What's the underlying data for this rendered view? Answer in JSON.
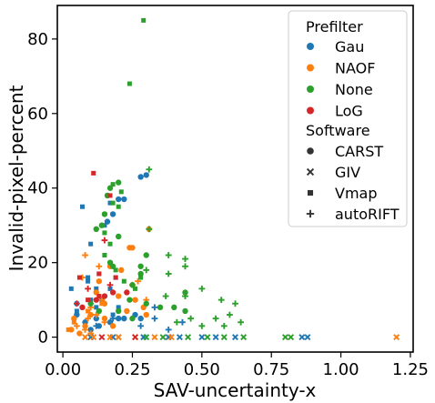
{
  "chart_data": {
    "type": "scatter",
    "title": "",
    "xlabel": "SAV-uncertainty-x",
    "ylabel": "Invalid-pixel-percent",
    "xlim": [
      -0.02,
      1.26
    ],
    "ylim": [
      -4,
      89
    ],
    "x_ticks": [
      "0.00",
      "0.25",
      "0.50",
      "0.75",
      "1.00",
      "1.25"
    ],
    "x_tick_values": [
      0,
      0.25,
      0.5,
      0.75,
      1.0,
      1.25
    ],
    "y_ticks": [
      "0",
      "20",
      "40",
      "60",
      "80"
    ],
    "y_tick_values": [
      0,
      20,
      40,
      60,
      80
    ],
    "grid": false,
    "legend": {
      "placement": "top-right",
      "hue_title": "Prefilter",
      "style_title": "Software",
      "hue_entries": [
        {
          "name": "Gau",
          "color": "#1f77b4"
        },
        {
          "name": "NAOF",
          "color": "#ff7f0e"
        },
        {
          "name": "None",
          "color": "#2ca02c"
        },
        {
          "name": "LoG",
          "color": "#d62728"
        }
      ],
      "style_entries": [
        {
          "name": "CARST",
          "marker": "circle"
        },
        {
          "name": "GIV",
          "marker": "x"
        },
        {
          "name": "Vmap",
          "marker": "square"
        },
        {
          "name": "autoRIFT",
          "marker": "plus"
        }
      ]
    },
    "series": [
      {
        "prefilter": "Gau",
        "software": "CARST",
        "points": [
          [
            0.28,
            43
          ],
          [
            0.3,
            43.5
          ],
          [
            0.22,
            37
          ],
          [
            0.2,
            37
          ],
          [
            0.16,
            31
          ],
          [
            0.18,
            33
          ],
          [
            0.05,
            6
          ],
          [
            0.08,
            4
          ],
          [
            0.12,
            5
          ],
          [
            0.17,
            4
          ],
          [
            0.2,
            5
          ],
          [
            0.22,
            5
          ],
          [
            0.13,
            3
          ],
          [
            0.1,
            2
          ],
          [
            0.26,
            6
          ],
          [
            0.28,
            5
          ]
        ]
      },
      {
        "prefilter": "Gau",
        "software": "GIV",
        "points": [
          [
            0.1,
            0
          ],
          [
            0.18,
            0
          ],
          [
            0.2,
            0
          ],
          [
            0.29,
            0
          ],
          [
            0.38,
            0
          ],
          [
            0.42,
            0
          ],
          [
            0.5,
            0
          ],
          [
            0.55,
            0
          ],
          [
            0.62,
            0
          ],
          [
            0.86,
            0
          ],
          [
            0.88,
            0
          ]
        ]
      },
      {
        "prefilter": "Gau",
        "software": "Vmap",
        "points": [
          [
            0.15,
            30
          ],
          [
            0.07,
            35
          ],
          [
            0.17,
            36
          ],
          [
            0.1,
            25
          ],
          [
            0.09,
            16
          ],
          [
            0.13,
            17
          ],
          [
            0.19,
            16
          ],
          [
            0.03,
            13
          ],
          [
            0.09,
            15
          ],
          [
            0.12,
            13
          ],
          [
            0.17,
            13
          ],
          [
            0.05,
            9
          ],
          [
            0.1,
            10
          ],
          [
            0.14,
            10
          ],
          [
            0.2,
            8
          ],
          [
            0.05,
            7
          ],
          [
            0.12,
            8
          ],
          [
            0.18,
            6
          ]
        ]
      },
      {
        "prefilter": "Gau",
        "software": "autoRIFT",
        "points": [
          [
            0.12,
            3
          ],
          [
            0.18,
            5
          ],
          [
            0.33,
            5
          ],
          [
            0.38,
            2
          ],
          [
            0.43,
            4
          ],
          [
            0.33,
            8
          ],
          [
            0.28,
            3
          ]
        ]
      },
      {
        "prefilter": "NAOF",
        "software": "CARST",
        "points": [
          [
            0.31,
            29
          ],
          [
            0.25,
            24
          ],
          [
            0.24,
            24
          ],
          [
            0.17,
            19
          ],
          [
            0.21,
            18
          ],
          [
            0.13,
            15
          ],
          [
            0.12,
            12
          ],
          [
            0.15,
            9
          ],
          [
            0.2,
            11
          ],
          [
            0.26,
            10
          ],
          [
            0.04,
            5
          ],
          [
            0.08,
            3
          ],
          [
            0.03,
            2
          ],
          [
            0.06,
            1
          ],
          [
            0.1,
            6
          ],
          [
            0.15,
            5
          ],
          [
            0.18,
            3
          ],
          [
            0.23,
            7
          ],
          [
            0.29,
            8
          ],
          [
            0.3,
            6
          ]
        ]
      },
      {
        "prefilter": "NAOF",
        "software": "GIV",
        "points": [
          [
            0.08,
            0
          ],
          [
            0.11,
            0
          ],
          [
            0.17,
            0
          ],
          [
            0.2,
            0
          ],
          [
            0.26,
            0
          ],
          [
            0.33,
            0
          ],
          [
            0.39,
            0
          ],
          [
            1.2,
            0
          ]
        ]
      },
      {
        "prefilter": "NAOF",
        "software": "Vmap",
        "points": [
          [
            0.14,
            9
          ],
          [
            0.09,
            7
          ],
          [
            0.04,
            4
          ],
          [
            0.02,
            2
          ]
        ]
      },
      {
        "prefilter": "NAOF",
        "software": "autoRIFT",
        "points": [
          [
            0.08,
            22
          ],
          [
            0.13,
            19
          ],
          [
            0.07,
            16
          ],
          [
            0.14,
            10
          ],
          [
            0.1,
            8
          ],
          [
            0.12,
            6
          ],
          [
            0.15,
            4
          ],
          [
            0.08,
            2
          ],
          [
            0.1,
            1
          ],
          [
            0.05,
            3
          ],
          [
            0.09,
            5
          ],
          [
            0.25,
            14
          ],
          [
            0.27,
            15
          ],
          [
            0.3,
            10
          ]
        ]
      },
      {
        "prefilter": "None",
        "software": "CARST",
        "points": [
          [
            0.2,
            41.5
          ],
          [
            0.17,
            40
          ],
          [
            0.16,
            38
          ],
          [
            0.15,
            33
          ],
          [
            0.14,
            30
          ],
          [
            0.12,
            29
          ],
          [
            0.2,
            27
          ],
          [
            0.17,
            20
          ],
          [
            0.18,
            19
          ],
          [
            0.3,
            22
          ],
          [
            0.28,
            19
          ],
          [
            0.28,
            17
          ],
          [
            0.25,
            14
          ],
          [
            0.24,
            10
          ],
          [
            0.44,
            12
          ],
          [
            0.3,
            9
          ],
          [
            0.35,
            8
          ],
          [
            0.4,
            8
          ],
          [
            0.44,
            7
          ],
          [
            0.1,
            9
          ],
          [
            0.13,
            7
          ],
          [
            0.2,
            7
          ],
          [
            0.25,
            5
          ]
        ]
      },
      {
        "prefilter": "None",
        "software": "GIV",
        "points": [
          [
            0.3,
            0
          ],
          [
            0.36,
            0
          ],
          [
            0.45,
            0
          ],
          [
            0.52,
            0
          ],
          [
            0.58,
            0
          ],
          [
            0.65,
            0
          ],
          [
            0.8,
            0
          ],
          [
            0.82,
            0
          ]
        ]
      },
      {
        "prefilter": "None",
        "software": "Vmap",
        "points": [
          [
            0.29,
            85
          ],
          [
            0.24,
            68
          ],
          [
            0.18,
            41
          ],
          [
            0.21,
            39
          ],
          [
            0.15,
            28
          ],
          [
            0.18,
            36
          ],
          [
            0.2,
            35
          ],
          [
            0.28,
            16
          ],
          [
            0.17,
            25
          ],
          [
            0.19,
            18
          ],
          [
            0.22,
            15
          ],
          [
            0.26,
            13
          ],
          [
            0.15,
            22
          ]
        ]
      },
      {
        "prefilter": "None",
        "software": "autoRIFT",
        "points": [
          [
            0.31,
            45
          ],
          [
            0.31,
            29
          ],
          [
            0.38,
            22
          ],
          [
            0.44,
            21
          ],
          [
            0.44,
            19
          ],
          [
            0.3,
            18
          ],
          [
            0.38,
            17
          ],
          [
            0.5,
            13
          ],
          [
            0.37,
            11
          ],
          [
            0.44,
            11
          ],
          [
            0.57,
            10
          ],
          [
            0.6,
            6
          ],
          [
            0.62,
            9
          ],
          [
            0.55,
            5
          ],
          [
            0.64,
            4
          ],
          [
            0.5,
            3
          ],
          [
            0.41,
            4
          ],
          [
            0.46,
            5
          ],
          [
            0.58,
            3
          ]
        ]
      },
      {
        "prefilter": "LoG",
        "software": "CARST",
        "points": [
          [
            0.07,
            8
          ],
          [
            0.12,
            10
          ],
          [
            0.15,
            11
          ],
          [
            0.18,
            12
          ],
          [
            0.23,
            12
          ]
        ]
      },
      {
        "prefilter": "LoG",
        "software": "GIV",
        "points": [
          [
            0.14,
            0
          ],
          [
            0.26,
            0
          ]
        ]
      },
      {
        "prefilter": "LoG",
        "software": "Vmap",
        "points": [
          [
            0.11,
            44
          ],
          [
            0.17,
            38
          ],
          [
            0.13,
            17
          ],
          [
            0.06,
            16
          ],
          [
            0.19,
            16
          ],
          [
            0.13,
            11
          ],
          [
            0.09,
            10
          ]
        ]
      },
      {
        "prefilter": "LoG",
        "software": "autoRIFT",
        "points": [
          [
            0.15,
            26
          ],
          [
            0.09,
            13
          ],
          [
            0.17,
            14
          ],
          [
            0.05,
            9
          ]
        ]
      }
    ]
  }
}
